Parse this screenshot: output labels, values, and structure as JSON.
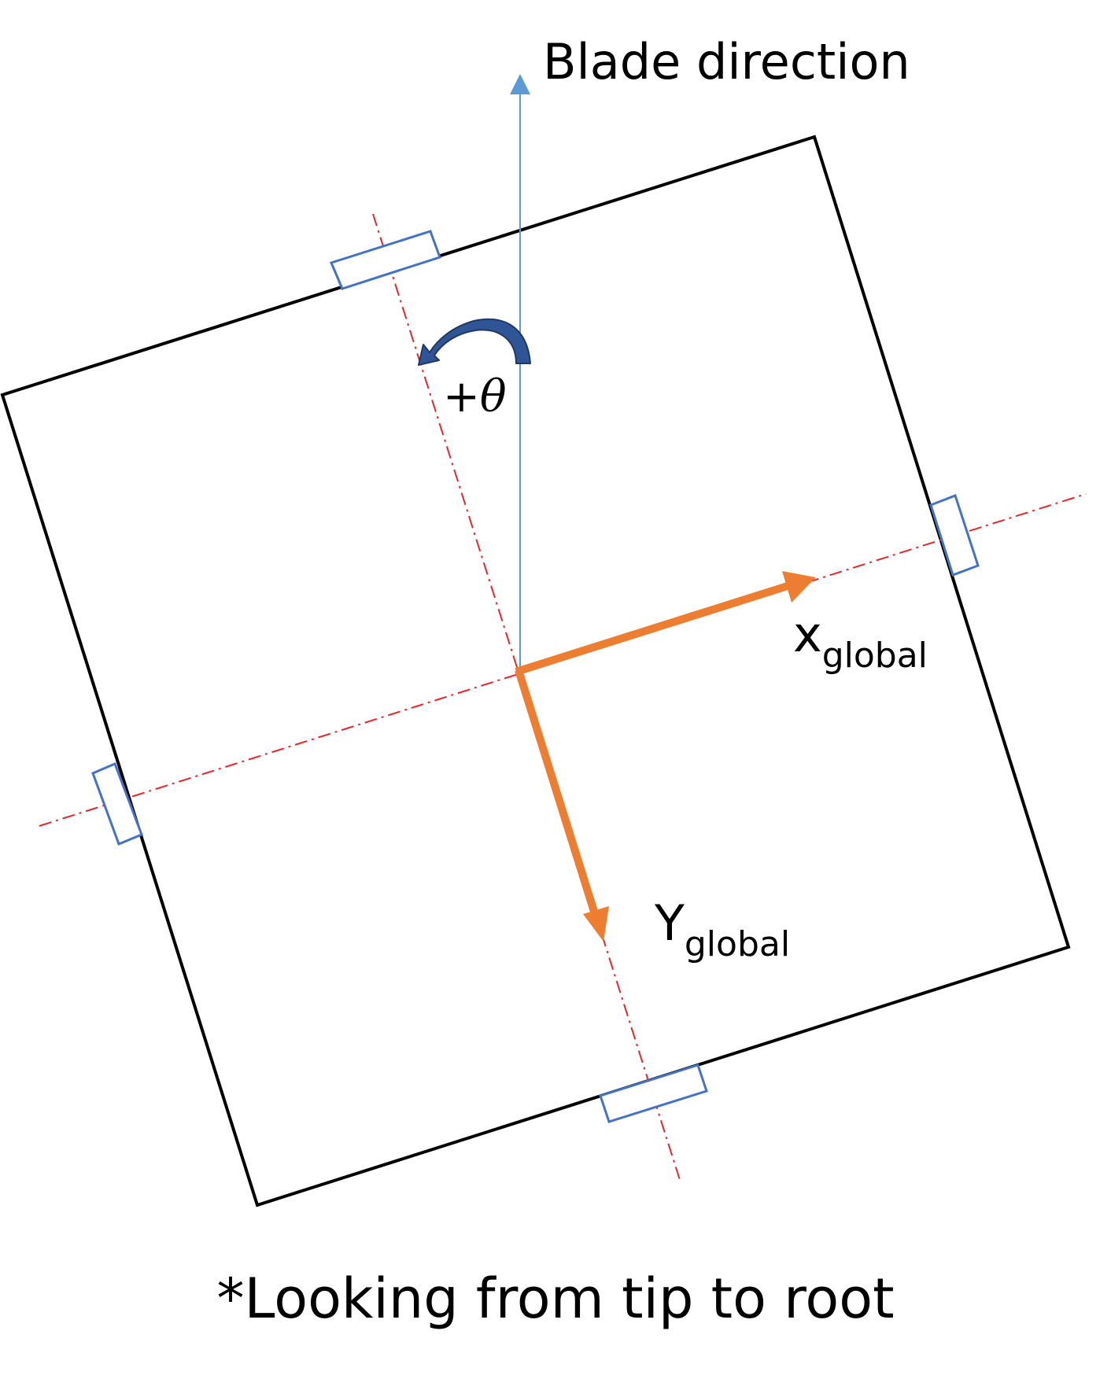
{
  "labels": {
    "blade_direction": "Blade direction",
    "rotation": "+θ",
    "x_axis": "x",
    "x_axis_sub": "global",
    "y_axis": "Y",
    "y_axis_sub": "global",
    "footnote": "*Looking from tip to root"
  },
  "rotation_angle_deg": 18,
  "colors": {
    "square_outline": "#000000",
    "axis_arrows": "#ED7D31",
    "blade_direction_arrow": "#5B9BD5",
    "centerlines": "#E8262B",
    "gauges": "#4472C4",
    "rotation_arrow": "#2F5597"
  }
}
